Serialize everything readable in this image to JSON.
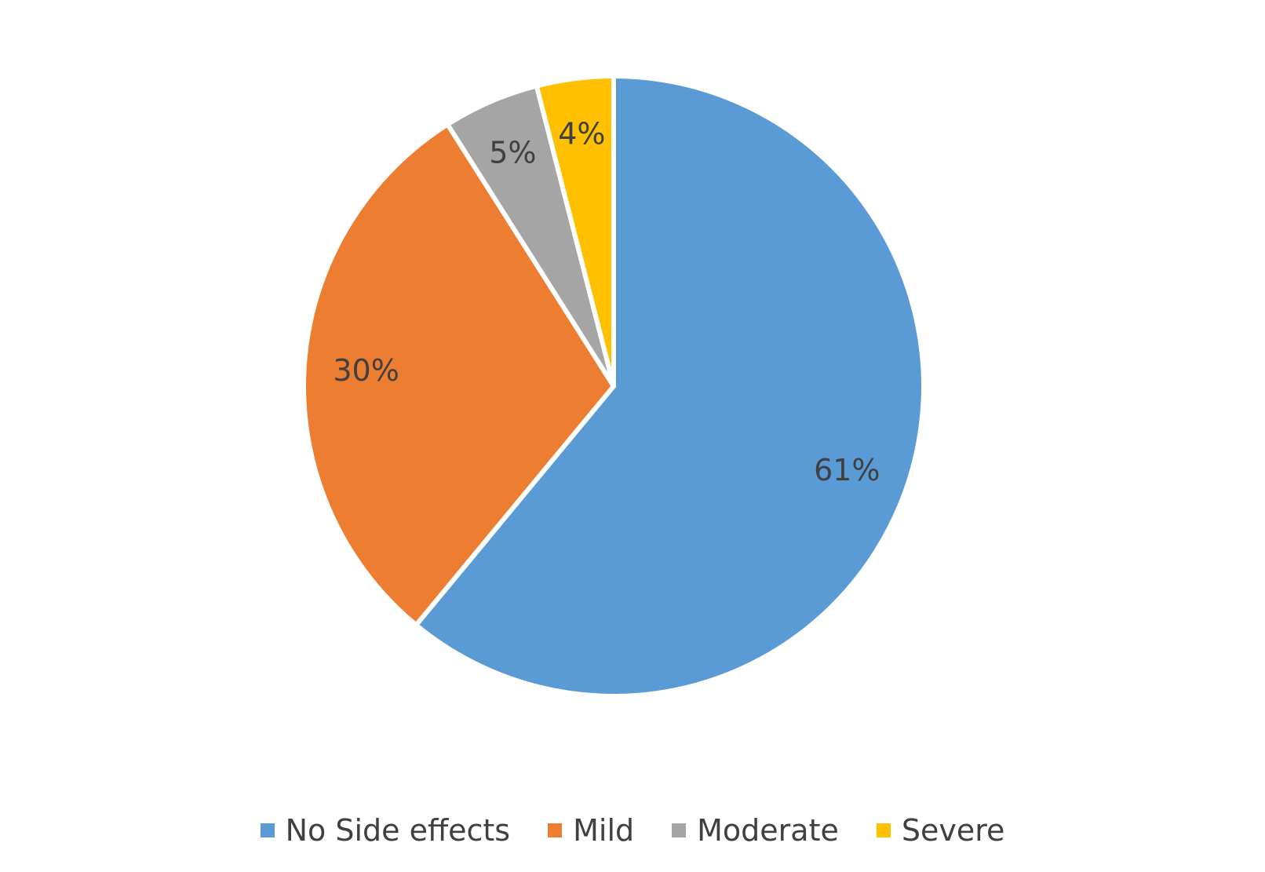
{
  "chart_data": {
    "type": "pie",
    "start_angle_deg": 0,
    "direction": "clockwise",
    "categories": [
      "No Side effects",
      "Mild",
      "Moderate",
      "Severe"
    ],
    "values": [
      61,
      30,
      5,
      4
    ],
    "labels": [
      "61%",
      "30%",
      "5%",
      "4%"
    ],
    "colors": [
      "#5B9BD5",
      "#ED7D31",
      "#A5A5A5",
      "#FFC000"
    ],
    "legend_position": "bottom"
  }
}
